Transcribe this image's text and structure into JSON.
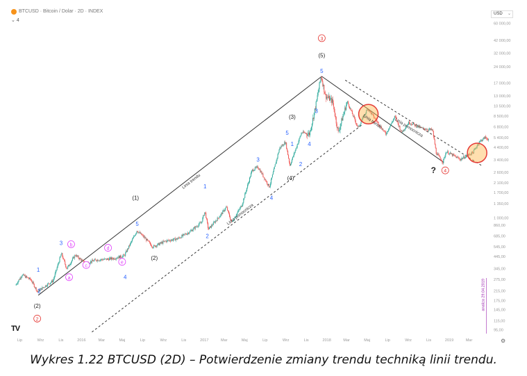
{
  "header": {
    "title": "BTCUSD · Bitcoin / Dolar · 2D · INDEX",
    "indicator_count": "4",
    "currency": "USD"
  },
  "footer": {
    "logo": "TV"
  },
  "caption": "Wykres 1.22 BTCUSD (2D) – Potwierdzenie zmiany trendu techniką linii trendu.",
  "colors": {
    "candle_up": "#2aa89a",
    "candle_down": "#ef5350",
    "wave_blue": "#2962ff",
    "wave_pink": "#e040fb",
    "circle_red": "#e53935",
    "circle_fill": "#ffb74d",
    "line": "#333333",
    "axis_text": "#999999",
    "annotation_purple": "#9c27b0"
  },
  "chart_data": {
    "type": "candlestick",
    "scale": "log",
    "y_ticks": [
      "60 000,00",
      "42 000,00",
      "32 000,00",
      "24 000,00",
      "17 000,00",
      "13 000,00",
      "10 500,00",
      "8 500,00",
      "6 800,00",
      "5 400,00",
      "4 400,00",
      "3 400,00",
      "2 600,00",
      "2 100,00",
      "1 700,00",
      "1 350,00",
      "1 000,00",
      "860,00",
      "685,00",
      "545,00",
      "445,00",
      "345,00",
      "275,00",
      "215,00",
      "175,00",
      "145,00",
      "115,00",
      "95,00"
    ],
    "x_ticks": [
      "Lip",
      "Wrz",
      "Lis",
      "2016",
      "Mar",
      "Maj",
      "Lip",
      "Wrz",
      "Lis",
      "2017",
      "Mar",
      "Maj",
      "Lip",
      "Wrz",
      "Lis",
      "2018",
      "Mar",
      "Maj",
      "Lip",
      "Wrz",
      "Lis",
      "2019",
      "Mar"
    ],
    "price_path": [
      [
        "2015-06-20",
        240
      ],
      [
        "2015-07-10",
        300
      ],
      [
        "2015-08-05",
        270
      ],
      [
        "2015-08-25",
        210
      ],
      [
        "2015-09-15",
        235
      ],
      [
        "2015-10-10",
        265
      ],
      [
        "2015-11-04",
        470
      ],
      [
        "2015-11-20",
        340
      ],
      [
        "2015-12-15",
        455
      ],
      [
        "2016-01-15",
        380
      ],
      [
        "2016-02-15",
        410
      ],
      [
        "2016-03-15",
        415
      ],
      [
        "2016-04-10",
        425
      ],
      [
        "2016-05-10",
        450
      ],
      [
        "2016-06-16",
        760
      ],
      [
        "2016-07-10",
        650
      ],
      [
        "2016-08-02",
        540
      ],
      [
        "2016-09-10",
        610
      ],
      [
        "2016-10-15",
        640
      ],
      [
        "2016-11-20",
        740
      ],
      [
        "2016-12-25",
        900
      ],
      [
        "2017-01-05",
        1140
      ],
      [
        "2017-01-15",
        780
      ],
      [
        "2017-02-20",
        1050
      ],
      [
        "2017-03-10",
        1250
      ],
      [
        "2017-03-25",
        900
      ],
      [
        "2017-04-25",
        1300
      ],
      [
        "2017-05-25",
        2700
      ],
      [
        "2017-06-12",
        2900
      ],
      [
        "2017-07-16",
        1900
      ],
      [
        "2017-08-15",
        4300
      ],
      [
        "2017-09-02",
        4900
      ],
      [
        "2017-09-15",
        3000
      ],
      [
        "2017-10-20",
        6000
      ],
      [
        "2017-11-12",
        5800
      ],
      [
        "2017-12-01",
        10500
      ],
      [
        "2017-12-17",
        19800
      ],
      [
        "2017-12-30",
        13000
      ],
      [
        "2018-01-20",
        11500
      ],
      [
        "2018-02-06",
        6000
      ],
      [
        "2018-03-05",
        11500
      ],
      [
        "2018-04-06",
        6600
      ],
      [
        "2018-05-05",
        9900
      ],
      [
        "2018-06-28",
        5800
      ],
      [
        "2018-07-25",
        8400
      ],
      [
        "2018-08-14",
        6000
      ],
      [
        "2018-09-05",
        7400
      ],
      [
        "2018-10-15",
        6500
      ],
      [
        "2018-11-14",
        6300
      ],
      [
        "2018-11-25",
        3900
      ],
      [
        "2018-12-15",
        3200
      ],
      [
        "2018-12-25",
        4000
      ],
      [
        "2019-02-05",
        3400
      ],
      [
        "2019-03-15",
        3950
      ],
      [
        "2019-04-02",
        4900
      ],
      [
        "2019-04-20",
        5400
      ],
      [
        "2019-04-29",
        5200
      ]
    ],
    "trendlines": [
      {
        "label": "Linia trendu",
        "from": [
          "2015-08-25",
          195
        ],
        "to": [
          "2017-12-17",
          19500
        ]
      },
      {
        "label": "Linia trendu",
        "from": [
          "2017-12-17",
          19500
        ],
        "to": [
          "2018-12-15",
          3200
        ]
      },
      {
        "label": "Linia pomocnicza",
        "from": [
          "2016-02-01",
          90
        ],
        "to": [
          "2018-04-15",
          7000
        ]
      },
      {
        "label": "Linia pomocnicza",
        "from": [
          "2018-02-25",
          18000
        ],
        "to": [
          "2019-04-10",
          2950
        ]
      }
    ],
    "circles": [
      {
        "x": "2018-05-05",
        "y": 8800
      },
      {
        "x": "2019-03-25",
        "y": 3900
      }
    ],
    "wave_labels": [
      {
        "text": "(2)",
        "x": "2015-08-22",
        "y": 150,
        "color": "black"
      },
      {
        "text": "2",
        "x": "2015-08-22",
        "y": 115,
        "color": "red_circle"
      },
      {
        "text": "1",
        "x": "2015-08-25",
        "y": 320,
        "color": "blue"
      },
      {
        "text": "2",
        "x": "2015-08-28",
        "y": 205,
        "color": "blue"
      },
      {
        "text": "3",
        "x": "2015-11-01",
        "y": 560,
        "color": "blue"
      },
      {
        "text": "a",
        "x": "2015-11-25",
        "y": 275,
        "color": "pink_circle"
      },
      {
        "text": "b",
        "x": "2015-12-01",
        "y": 550,
        "color": "pink_circle"
      },
      {
        "text": "c",
        "x": "2016-01-15",
        "y": 355,
        "color": "pink_circle"
      },
      {
        "text": "d",
        "x": "2016-03-20",
        "y": 510,
        "color": "pink_circle"
      },
      {
        "text": "e",
        "x": "2016-05-01",
        "y": 380,
        "color": "pink_circle"
      },
      {
        "text": "4",
        "x": "2016-05-10",
        "y": 275,
        "color": "blue"
      },
      {
        "text": "(1)",
        "x": "2016-06-10",
        "y": 1450,
        "color": "black"
      },
      {
        "text": "5",
        "x": "2016-06-15",
        "y": 840,
        "color": "blue"
      },
      {
        "text": "(2)",
        "x": "2016-08-05",
        "y": 410,
        "color": "black"
      },
      {
        "text": "1",
        "x": "2017-01-03",
        "y": 1850,
        "color": "blue"
      },
      {
        "text": "2",
        "x": "2017-01-10",
        "y": 650,
        "color": "blue"
      },
      {
        "text": "3",
        "x": "2017-06-10",
        "y": 3250,
        "color": "blue"
      },
      {
        "text": "4",
        "x": "2017-07-20",
        "y": 1450,
        "color": "blue"
      },
      {
        "text": "(4)",
        "x": "2017-09-15",
        "y": 2200,
        "color": "black"
      },
      {
        "text": "(3)",
        "x": "2017-09-20",
        "y": 8000,
        "color": "black"
      },
      {
        "text": "5",
        "x": "2017-09-05",
        "y": 5700,
        "color": "blue"
      },
      {
        "text": "1",
        "x": "2017-09-20",
        "y": 4500,
        "color": "blue"
      },
      {
        "text": "2",
        "x": "2017-10-15",
        "y": 2950,
        "color": "blue"
      },
      {
        "text": "4",
        "x": "2017-11-10",
        "y": 4500,
        "color": "blue"
      },
      {
        "text": "3",
        "x": "2017-12-01",
        "y": 9000,
        "color": "blue"
      },
      {
        "text": "5",
        "x": "2017-12-17",
        "y": 21000,
        "color": "blue"
      },
      {
        "text": "(5)",
        "x": "2017-12-17",
        "y": 29000,
        "color": "black"
      },
      {
        "text": "3",
        "x": "2017-12-17",
        "y": 42000,
        "color": "red_circle"
      },
      {
        "text": "?",
        "x": "2018-11-15",
        "y": 2550,
        "color": "black"
      },
      {
        "text": "4",
        "x": "2018-12-20",
        "y": 2600,
        "color": "red_circle"
      }
    ],
    "rotated_labels": [
      {
        "text": "Linia trendu",
        "x": "2016-11-25",
        "y": 2100
      },
      {
        "text": "Linia pomocnicza",
        "x": "2017-04-20",
        "y": 1050
      },
      {
        "text": "Linia trendu",
        "x": "2018-05-15",
        "y": 7400
      },
      {
        "text": "Linia pomocnicza",
        "x": "2018-09-01",
        "y": 6500
      }
    ],
    "vertical_note": {
      "text": "analiza 29.04.2019",
      "x": "2019-04-22",
      "y": 140
    }
  }
}
